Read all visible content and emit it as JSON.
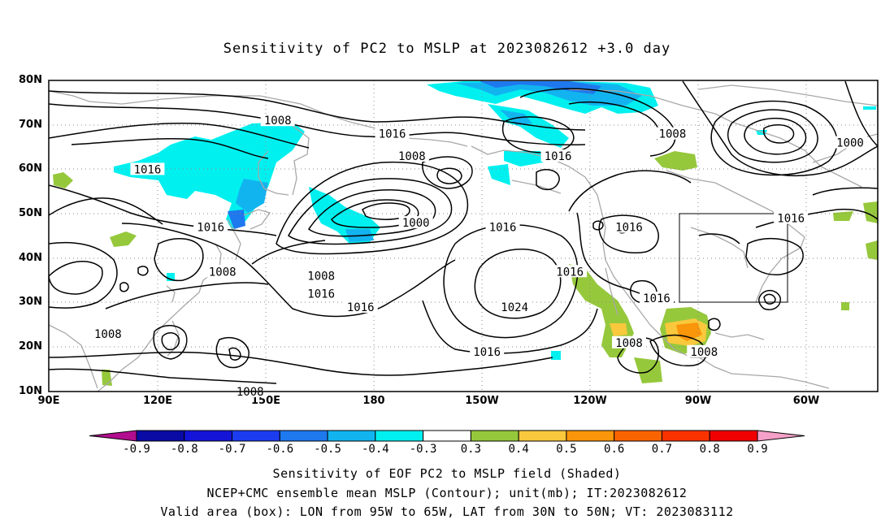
{
  "title": "Sensitivity of PC2 to MSLP at 2023082612 +3.0 day",
  "lat_labels": [
    "80N",
    "70N",
    "60N",
    "50N",
    "40N",
    "30N",
    "20N",
    "10N"
  ],
  "lon_labels": [
    "90E",
    "120E",
    "150E",
    "180",
    "150W",
    "120W",
    "90W",
    "60W"
  ],
  "colorbar": {
    "labels": [
      "-0.9",
      "-0.8",
      "-0.7",
      "-0.6",
      "-0.5",
      "-0.4",
      "-0.3",
      "0.3",
      "0.4",
      "0.5",
      "0.6",
      "0.7",
      "0.8",
      "0.9"
    ],
    "colors": [
      "#b10d8e",
      "#0a0aa5",
      "#1414d8",
      "#1c3cf0",
      "#1e78ee",
      "#12b4f0",
      "#00f0f0",
      "#ffffff",
      "#96c83c",
      "#fac83c",
      "#fa960a",
      "#fa6400",
      "#fa3200",
      "#f00000",
      "#f5a0c8"
    ]
  },
  "contour_labels": [
    {
      "text": "1008",
      "lon": 148,
      "lat": 71
    },
    {
      "text": "1016",
      "lon": 177,
      "lat": 68
    },
    {
      "text": "1008",
      "lon": 182,
      "lat": 63
    },
    {
      "text": "1016",
      "lon": 219,
      "lat": 63
    },
    {
      "text": "1008",
      "lon": 248,
      "lat": 68
    },
    {
      "text": "1000",
      "lon": 293,
      "lat": 66
    },
    {
      "text": "1016",
      "lon": 115,
      "lat": 60
    },
    {
      "text": "1000",
      "lon": 183,
      "lat": 48
    },
    {
      "text": "1016",
      "lon": 205,
      "lat": 47
    },
    {
      "text": "1016",
      "lon": 237,
      "lat": 47
    },
    {
      "text": "1016",
      "lon": 278,
      "lat": 49
    },
    {
      "text": "1016",
      "lon": 131,
      "lat": 47
    },
    {
      "text": "1008",
      "lon": 134,
      "lat": 37
    },
    {
      "text": "1008",
      "lon": 159,
      "lat": 36
    },
    {
      "text": "1016",
      "lon": 159,
      "lat": 32
    },
    {
      "text": "1016",
      "lon": 222,
      "lat": 37
    },
    {
      "text": "1016",
      "lon": 169,
      "lat": 29
    },
    {
      "text": "1024",
      "lon": 208,
      "lat": 29
    },
    {
      "text": "1016",
      "lon": 244,
      "lat": 31
    },
    {
      "text": "1008",
      "lon": 105,
      "lat": 23
    },
    {
      "text": "1016",
      "lon": 201,
      "lat": 19
    },
    {
      "text": "1008",
      "lon": 237,
      "lat": 21
    },
    {
      "text": "1008",
      "lon": 256,
      "lat": 19
    },
    {
      "text": "1008",
      "lon": 141,
      "lat": 10
    }
  ],
  "valid_box": {
    "lon_from": 265,
    "lon_to": 295,
    "lat_from": 30,
    "lat_to": 50
  },
  "captions": [
    "Sensitivity of EOF PC2 to MSLP field (Shaded)",
    "NCEP+CMC ensemble mean MSLP (Contour); unit(mb); IT:2023082612",
    "Valid area (box): LON from 95W to 65W, LAT from 30N to 50N; VT: 2023083112"
  ]
}
